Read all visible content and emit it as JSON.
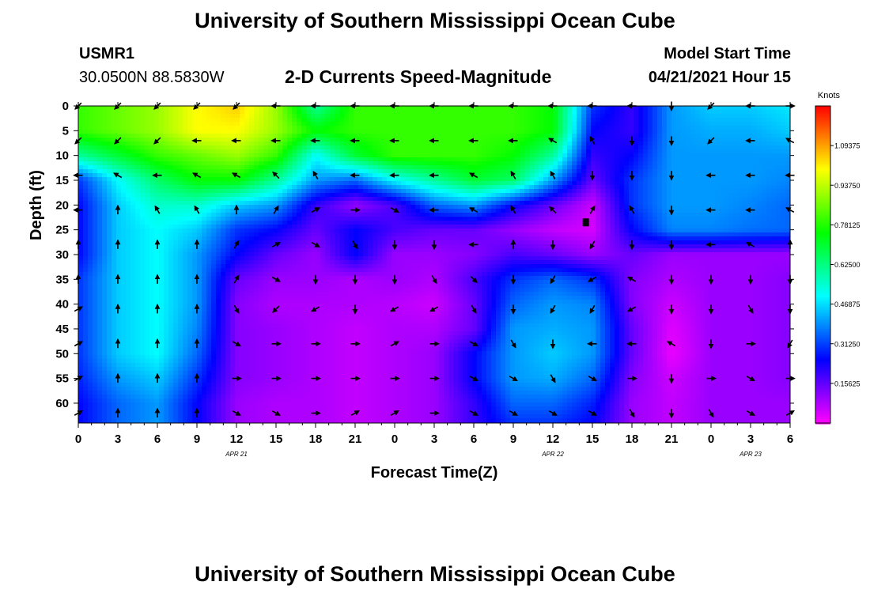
{
  "page": {
    "title_top": "University of Southern Mississippi Ocean Cube",
    "title_bottom": "University of Southern Mississippi Ocean Cube",
    "station_id": "USMR1",
    "station_coords": "30.0500N  88.5830W",
    "plot_subtitle": "2-D Currents Speed-Magnitude",
    "model_start_label": "Model Start Time",
    "model_start_value": "04/21/2021 Hour 15"
  },
  "chart_data": {
    "type": "heatmap",
    "title": "2-D Currents Speed-Magnitude",
    "xlabel": "Forecast Time(Z)",
    "ylabel": "Depth (ft)",
    "x_tick_labels": [
      "0",
      "3",
      "6",
      "9",
      "12",
      "15",
      "18",
      "21",
      "0",
      "3",
      "6",
      "9",
      "12",
      "15",
      "18",
      "21",
      "0",
      "3",
      "6"
    ],
    "x_hours": [
      0,
      3,
      6,
      9,
      12,
      15,
      18,
      21,
      24,
      27,
      30,
      33,
      36,
      39,
      42,
      45,
      48,
      51,
      54
    ],
    "date_labels": [
      {
        "text": "APR  21",
        "hour": 12
      },
      {
        "text": "APR  22",
        "hour": 36
      },
      {
        "text": "APR  23",
        "hour": 51
      }
    ],
    "y_ticks": [
      0,
      5,
      10,
      15,
      20,
      25,
      30,
      35,
      40,
      45,
      50,
      55,
      60
    ],
    "ylim": [
      0,
      64
    ],
    "xlim": [
      0,
      54
    ],
    "colorbar": {
      "label": "Knots",
      "range": [
        0,
        1.25
      ],
      "tick_labels": [
        "1.09375",
        "0.93750",
        "0.78125",
        "0.62500",
        "0.46875",
        "0.31250",
        "0.15625"
      ],
      "tick_values": [
        1.09375,
        0.9375,
        0.78125,
        0.625,
        0.46875,
        0.3125,
        0.15625
      ],
      "colors": [
        "#ff00ff",
        "#8000ff",
        "#0000ff",
        "#0080ff",
        "#00ffff",
        "#00ff80",
        "#00ff00",
        "#80ff00",
        "#ffff00",
        "#ff8000",
        "#ff0000"
      ]
    },
    "marker": {
      "hour": 38.5,
      "depth": 23.5
    },
    "speed_grid": {
      "hours": [
        0,
        3,
        6,
        9,
        12,
        15,
        18,
        21,
        24,
        27,
        30,
        33,
        36,
        39,
        42,
        45,
        48,
        51,
        54
      ],
      "depths": [
        0,
        5,
        10,
        15,
        20,
        25,
        30,
        35,
        40,
        45,
        50,
        55,
        60,
        64
      ],
      "values": [
        [
          0.8,
          0.85,
          0.9,
          1.0,
          1.05,
          0.9,
          0.6,
          0.8,
          0.8,
          0.8,
          0.8,
          0.8,
          0.75,
          0.3,
          0.2,
          0.4,
          0.45,
          0.45,
          0.48
        ],
        [
          0.8,
          0.85,
          0.9,
          1.0,
          1.0,
          0.9,
          0.75,
          0.8,
          0.8,
          0.8,
          0.8,
          0.8,
          0.75,
          0.25,
          0.2,
          0.4,
          0.42,
          0.42,
          0.45
        ],
        [
          0.6,
          0.7,
          0.8,
          0.85,
          0.9,
          0.8,
          0.5,
          0.7,
          0.8,
          0.8,
          0.8,
          0.75,
          0.6,
          0.2,
          0.25,
          0.4,
          0.4,
          0.4,
          0.4
        ],
        [
          0.3,
          0.5,
          0.65,
          0.75,
          0.75,
          0.6,
          0.4,
          0.35,
          0.5,
          0.6,
          0.7,
          0.65,
          0.4,
          0.15,
          0.3,
          0.4,
          0.4,
          0.4,
          0.38
        ],
        [
          0.25,
          0.45,
          0.55,
          0.55,
          0.45,
          0.4,
          0.2,
          0.1,
          0.18,
          0.35,
          0.4,
          0.25,
          0.15,
          0.05,
          0.3,
          0.4,
          0.4,
          0.38,
          0.35
        ],
        [
          0.25,
          0.45,
          0.5,
          0.45,
          0.3,
          0.25,
          0.15,
          0.25,
          0.18,
          0.15,
          0.15,
          0.1,
          0.06,
          0.04,
          0.25,
          0.38,
          0.38,
          0.36,
          0.35
        ],
        [
          0.25,
          0.45,
          0.5,
          0.4,
          0.25,
          0.15,
          0.1,
          0.25,
          0.1,
          0.1,
          0.12,
          0.18,
          0.15,
          0.1,
          0.15,
          0.1,
          0.1,
          0.1,
          0.1
        ],
        [
          0.3,
          0.45,
          0.5,
          0.4,
          0.15,
          0.1,
          0.1,
          0.08,
          0.1,
          0.08,
          0.18,
          0.3,
          0.35,
          0.3,
          0.12,
          0.08,
          0.1,
          0.1,
          0.12
        ],
        [
          0.3,
          0.45,
          0.5,
          0.4,
          0.12,
          0.08,
          0.08,
          0.08,
          0.07,
          0.05,
          0.15,
          0.35,
          0.4,
          0.38,
          0.12,
          0.05,
          0.1,
          0.1,
          0.12
        ],
        [
          0.3,
          0.45,
          0.5,
          0.38,
          0.12,
          0.1,
          0.08,
          0.06,
          0.08,
          0.08,
          0.15,
          0.4,
          0.42,
          0.4,
          0.15,
          0.03,
          0.1,
          0.1,
          0.12
        ],
        [
          0.3,
          0.45,
          0.5,
          0.35,
          0.12,
          0.1,
          0.08,
          0.06,
          0.08,
          0.1,
          0.25,
          0.4,
          0.45,
          0.4,
          0.15,
          0.02,
          0.1,
          0.1,
          0.12
        ],
        [
          0.28,
          0.4,
          0.45,
          0.3,
          0.12,
          0.1,
          0.08,
          0.06,
          0.08,
          0.1,
          0.25,
          0.4,
          0.42,
          0.35,
          0.12,
          0.05,
          0.1,
          0.1,
          0.12
        ],
        [
          0.25,
          0.35,
          0.4,
          0.25,
          0.1,
          0.08,
          0.08,
          0.06,
          0.08,
          0.1,
          0.2,
          0.35,
          0.35,
          0.28,
          0.1,
          0.06,
          0.1,
          0.1,
          0.1
        ],
        [
          0.25,
          0.35,
          0.4,
          0.25,
          0.1,
          0.08,
          0.08,
          0.06,
          0.08,
          0.1,
          0.2,
          0.3,
          0.3,
          0.25,
          0.1,
          0.06,
          0.1,
          0.1,
          0.1
        ]
      ]
    },
    "vectors": {
      "hours": [
        0,
        3,
        6,
        9,
        12,
        15,
        18,
        21,
        24,
        27,
        30,
        33,
        36,
        39,
        42,
        45,
        48,
        51,
        54
      ],
      "depths": [
        0,
        7,
        14,
        21,
        28,
        35,
        41,
        48,
        55,
        62
      ],
      "directions_deg": [
        [
          225,
          225,
          225,
          225,
          225,
          270,
          270,
          270,
          270,
          270,
          270,
          270,
          270,
          270,
          270,
          180,
          225,
          270,
          90
        ],
        [
          225,
          225,
          225,
          270,
          270,
          270,
          270,
          270,
          270,
          270,
          270,
          270,
          300,
          330,
          180,
          180,
          225,
          270,
          300
        ],
        [
          270,
          300,
          270,
          300,
          300,
          315,
          330,
          270,
          270,
          270,
          300,
          330,
          330,
          180,
          180,
          180,
          270,
          270,
          270
        ],
        [
          270,
          0,
          330,
          330,
          0,
          30,
          60,
          90,
          120,
          270,
          300,
          330,
          315,
          30,
          330,
          180,
          270,
          270,
          300
        ],
        [
          0,
          0,
          0,
          0,
          30,
          60,
          120,
          150,
          180,
          180,
          270,
          0,
          180,
          210,
          180,
          180,
          270,
          300,
          0
        ],
        [
          0,
          0,
          0,
          0,
          30,
          120,
          180,
          180,
          180,
          150,
          135,
          180,
          210,
          240,
          300,
          180,
          180,
          180,
          180
        ],
        [
          60,
          0,
          0,
          0,
          150,
          225,
          240,
          180,
          240,
          240,
          150,
          180,
          210,
          210,
          240,
          180,
          180,
          150,
          180
        ],
        [
          60,
          0,
          0,
          0,
          120,
          90,
          90,
          90,
          60,
          90,
          120,
          150,
          180,
          270,
          270,
          300,
          180,
          90,
          210
        ],
        [
          60,
          0,
          0,
          0,
          90,
          90,
          90,
          90,
          90,
          90,
          120,
          120,
          150,
          120,
          90,
          180,
          90,
          120,
          90
        ],
        [
          60,
          0,
          0,
          0,
          120,
          120,
          90,
          60,
          60,
          90,
          120,
          120,
          120,
          120,
          150,
          180,
          150,
          120,
          60
        ]
      ]
    }
  }
}
